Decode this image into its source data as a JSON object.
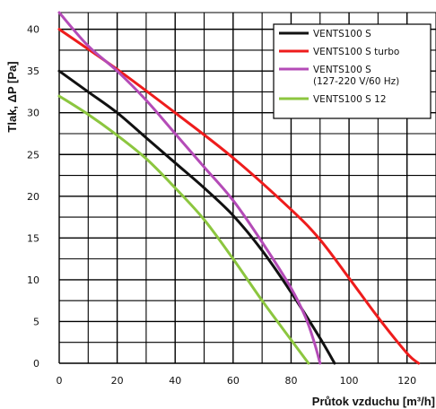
{
  "chart_data": {
    "type": "line",
    "title": "",
    "xlabel": "Průtok vzduchu [m³/h]",
    "ylabel": "Tlak, ΔP [Pa]",
    "xlim": [
      0,
      130
    ],
    "ylim": [
      0,
      42
    ],
    "x_ticks": [
      "0",
      "20",
      "40",
      "60",
      "80",
      "100",
      "120"
    ],
    "y_ticks": [
      "0",
      "5",
      "10",
      "15",
      "20",
      "25",
      "30",
      "35",
      "40"
    ],
    "grid": true,
    "legend_position": "top-right",
    "series": [
      {
        "name": "VENTS100 S",
        "color": "#111111",
        "points": [
          [
            0,
            35
          ],
          [
            10,
            32.5
          ],
          [
            20,
            30
          ],
          [
            30,
            27
          ],
          [
            40,
            24
          ],
          [
            50,
            21
          ],
          [
            60,
            17.7
          ],
          [
            70,
            13.5
          ],
          [
            80,
            8.5
          ],
          [
            90,
            3
          ],
          [
            95,
            0
          ]
        ]
      },
      {
        "name": "VENTS100 S turbo",
        "color": "#ee1c1c",
        "points": [
          [
            0,
            40
          ],
          [
            20,
            35.2
          ],
          [
            40,
            30
          ],
          [
            60,
            24.6
          ],
          [
            80,
            18.4
          ],
          [
            90,
            14.8
          ],
          [
            100,
            10.2
          ],
          [
            110,
            5.5
          ],
          [
            120,
            1.2
          ],
          [
            124,
            0
          ]
        ]
      },
      {
        "name": "VENTS100 S\n(127-220 V/60 Hz)",
        "name_lines": [
          "VENTS100 S",
          "(127-220 V/60 Hz)"
        ],
        "color": "#b44bb7",
        "points": [
          [
            0,
            42
          ],
          [
            10,
            38
          ],
          [
            20,
            35
          ],
          [
            30,
            31.5
          ],
          [
            40,
            27.5
          ],
          [
            50,
            23.5
          ],
          [
            60,
            19.5
          ],
          [
            70,
            14.5
          ],
          [
            80,
            9
          ],
          [
            85,
            5.5
          ],
          [
            88,
            2.5
          ],
          [
            90,
            0
          ]
        ]
      },
      {
        "name": "VENTS100 S 12",
        "color": "#8cc63f",
        "points": [
          [
            0,
            32
          ],
          [
            10,
            29.8
          ],
          [
            20,
            27.3
          ],
          [
            30,
            24.5
          ],
          [
            40,
            21
          ],
          [
            50,
            17.2
          ],
          [
            60,
            12.5
          ],
          [
            70,
            7.5
          ],
          [
            80,
            2.8
          ],
          [
            86,
            0
          ]
        ]
      }
    ]
  }
}
